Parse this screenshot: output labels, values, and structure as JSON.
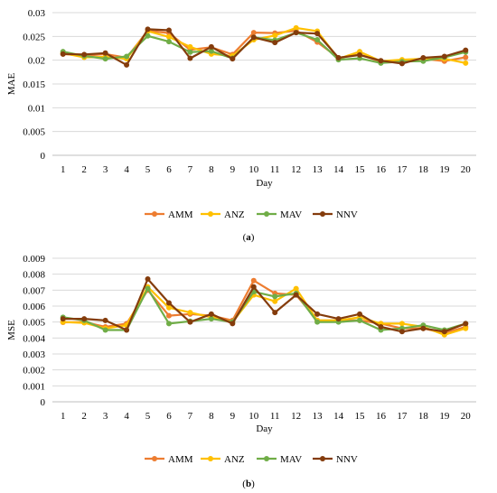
{
  "charts": [
    {
      "caption": "(a)",
      "caption_letter": "a"
    },
    {
      "caption": "(b)",
      "caption_letter": "b"
    }
  ],
  "colors": {
    "AMM": "#ED7D31",
    "ANZ": "#FFC000",
    "MAV": "#70AD47",
    "NNV": "#843C0C",
    "grid": "#D9D9D9"
  },
  "chart_data": [
    {
      "type": "line",
      "title": "",
      "xlabel": "Day",
      "ylabel": "MAE",
      "x": [
        1,
        2,
        3,
        4,
        5,
        6,
        7,
        8,
        9,
        10,
        11,
        12,
        13,
        14,
        15,
        16,
        17,
        18,
        19,
        20
      ],
      "ylim": [
        0,
        0.03
      ],
      "yticks": [
        "0",
        "0.005",
        "0.01",
        "0.015",
        "0.02",
        "0.025",
        "0.03"
      ],
      "grid": true,
      "legend_position": "bottom",
      "series": [
        {
          "name": "AMM",
          "values": [
            0.0213,
            0.0209,
            0.0213,
            0.0205,
            0.0262,
            0.0257,
            0.0222,
            0.0227,
            0.0212,
            0.0258,
            0.0257,
            0.0262,
            0.0238,
            0.0205,
            0.0212,
            0.0197,
            0.0197,
            0.0203,
            0.0198,
            0.0206
          ]
        },
        {
          "name": "ANZ",
          "values": [
            0.0215,
            0.0206,
            0.0207,
            0.0203,
            0.0261,
            0.0249,
            0.0228,
            0.0213,
            0.0209,
            0.0243,
            0.0252,
            0.0268,
            0.0261,
            0.0203,
            0.0218,
            0.0198,
            0.0201,
            0.0203,
            0.0203,
            0.0194
          ]
        },
        {
          "name": "MAV",
          "values": [
            0.0218,
            0.0209,
            0.0203,
            0.0208,
            0.0251,
            0.0239,
            0.0217,
            0.0219,
            0.0204,
            0.0248,
            0.0242,
            0.0258,
            0.0243,
            0.0201,
            0.0204,
            0.0194,
            0.0197,
            0.0198,
            0.0206,
            0.0217
          ]
        },
        {
          "name": "NNV",
          "values": [
            0.0213,
            0.0212,
            0.0215,
            0.019,
            0.0265,
            0.0263,
            0.0204,
            0.0228,
            0.0203,
            0.0248,
            0.0237,
            0.0258,
            0.0256,
            0.0205,
            0.0211,
            0.0199,
            0.0193,
            0.0205,
            0.0208,
            0.0221
          ]
        }
      ]
    },
    {
      "type": "line",
      "title": "",
      "xlabel": "Day",
      "ylabel": "MSE",
      "x": [
        1,
        2,
        3,
        4,
        5,
        6,
        7,
        8,
        9,
        10,
        11,
        12,
        13,
        14,
        15,
        16,
        17,
        18,
        19,
        20
      ],
      "ylim": [
        0,
        0.009
      ],
      "yticks": [
        "0",
        "0.001",
        "0.002",
        "0.003",
        "0.004",
        "0.005",
        "0.006",
        "0.007",
        "0.008",
        "0.009"
      ],
      "grid": true,
      "legend_position": "bottom",
      "series": [
        {
          "name": "AMM",
          "values": [
            0.00498,
            0.005,
            0.0047,
            0.0049,
            0.007,
            0.0054,
            0.0055,
            0.0054,
            0.0051,
            0.0076,
            0.0068,
            0.0067,
            0.0051,
            0.0051,
            0.0051,
            0.0049,
            0.0046,
            0.0046,
            0.0043,
            0.0047
          ]
        },
        {
          "name": "ANZ",
          "values": [
            0.005,
            0.00495,
            0.0046,
            0.0048,
            0.0072,
            0.0059,
            0.0056,
            0.0053,
            0.005,
            0.0067,
            0.0063,
            0.0071,
            0.0051,
            0.0051,
            0.0053,
            0.0049,
            0.0049,
            0.0047,
            0.0042,
            0.0046
          ]
        },
        {
          "name": "MAV",
          "values": [
            0.0053,
            0.0051,
            0.0045,
            0.0045,
            0.0071,
            0.0049,
            0.00505,
            0.0052,
            0.005,
            0.0069,
            0.0066,
            0.0068,
            0.005,
            0.005,
            0.0051,
            0.0045,
            0.0046,
            0.0048,
            0.0045,
            0.0049
          ]
        },
        {
          "name": "NNV",
          "values": [
            0.0052,
            0.0052,
            0.0051,
            0.0045,
            0.0077,
            0.0062,
            0.005,
            0.0055,
            0.0049,
            0.0072,
            0.0056,
            0.0067,
            0.0055,
            0.0052,
            0.0055,
            0.0047,
            0.0044,
            0.0046,
            0.0044,
            0.0049
          ]
        }
      ]
    }
  ]
}
